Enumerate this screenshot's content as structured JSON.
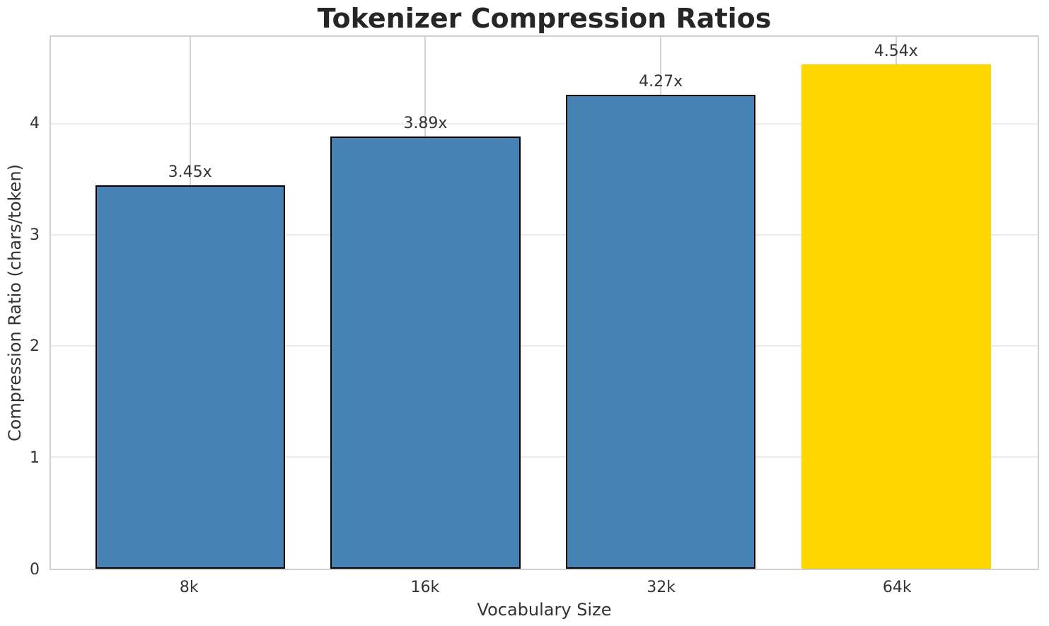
{
  "chart_data": {
    "type": "bar",
    "title": "Tokenizer Compression Ratios",
    "xlabel": "Vocabulary Size",
    "ylabel": "Compression Ratio (chars/token)",
    "categories": [
      "8k",
      "16k",
      "32k",
      "64k"
    ],
    "values": [
      3.45,
      3.89,
      4.27,
      4.54
    ],
    "bar_labels": [
      "3.45x",
      "3.89x",
      "4.27x",
      "4.54x"
    ],
    "yticks": [
      0,
      1,
      2,
      3,
      4
    ],
    "ylim": [
      0,
      4.79
    ],
    "grid": true,
    "legend": "none",
    "highlight_index": 3,
    "colors": {
      "bar": "#4682B4",
      "highlight_bar": "#FFD700",
      "bar_edge": "#000000",
      "grid_horizontal": "#ebebeb",
      "grid_vertical": "#d4d4d4",
      "spine": "#d0d0d0",
      "title_text": "#262626",
      "tick_text": "#333333"
    }
  }
}
